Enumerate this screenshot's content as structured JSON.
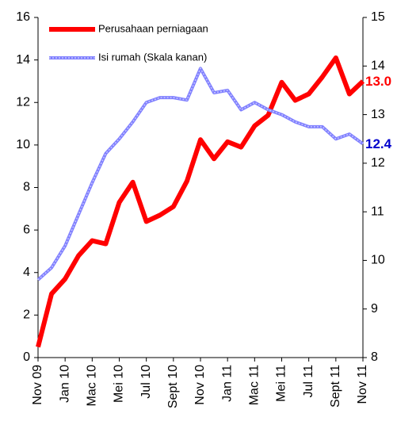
{
  "chart_data": {
    "type": "line",
    "categories": [
      "Nov 09",
      null,
      "Jan 10",
      null,
      "Mac 10",
      null,
      "Mei 10",
      null,
      "Jul 10",
      null,
      "Sept 10",
      null,
      "Nov 10",
      null,
      "Jan 11",
      null,
      "Mac 11",
      null,
      "Mei 11",
      null,
      "Jul 11",
      null,
      "Sept 11",
      null,
      "Nov 11"
    ],
    "series": [
      {
        "name": "Perusahaan perniagaan",
        "color": "#ff0000",
        "axis": "y",
        "values": [
          0.5,
          3.0,
          3.7,
          4.8,
          5.5,
          5.35,
          7.3,
          8.25,
          6.4,
          6.7,
          7.1,
          8.3,
          10.25,
          9.35,
          10.15,
          9.9,
          10.9,
          11.4,
          12.95,
          12.1,
          12.4,
          13.2,
          14.1,
          12.4,
          13.0
        ],
        "value_labels": [
          null,
          null,
          null,
          null,
          null,
          null,
          null,
          null,
          null,
          null,
          null,
          null,
          null,
          null,
          null,
          null,
          null,
          null,
          null,
          null,
          null,
          null,
          null,
          null,
          "13.0"
        ]
      },
      {
        "name": "Isi rumah (Skala kanan)",
        "color": "#7f7fff",
        "axis": "y2",
        "values": [
          9.6,
          9.85,
          10.3,
          10.95,
          11.6,
          12.2,
          12.5,
          12.85,
          13.25,
          13.35,
          13.35,
          13.3,
          13.95,
          13.45,
          13.5,
          13.1,
          13.25,
          13.1,
          13.0,
          12.85,
          12.75,
          12.75,
          12.5,
          12.6,
          12.4
        ]
      }
    ],
    "ylim": [
      0,
      16
    ],
    "yticks": [
      0,
      2,
      4,
      6,
      8,
      10,
      12,
      14,
      16
    ],
    "y2lim": [
      8,
      15
    ],
    "y2ticks": [
      8,
      9,
      10,
      11,
      12,
      13,
      14,
      15
    ],
    "label_colors": [
      "#ff0000",
      "#0000cc"
    ]
  }
}
